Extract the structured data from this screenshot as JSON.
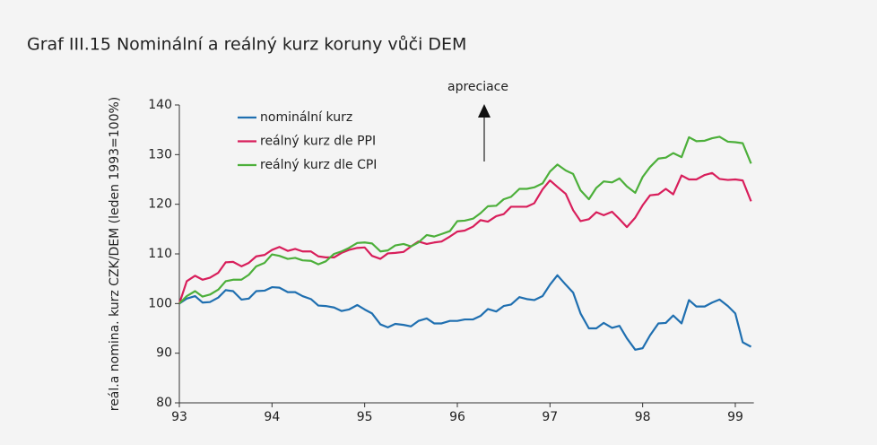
{
  "chart_data": {
    "type": "line",
    "title": "Graf III.15 Nominální a reálný kurz koruny vůči DEM",
    "y_label": "reál.a nomina. kurz CZK/DEM (leden 1993=100%)",
    "annotation": "apreciace",
    "x": [
      93,
      93.08,
      93.17,
      93.25,
      93.33,
      93.42,
      93.5,
      93.58,
      93.67,
      93.75,
      93.83,
      93.92,
      94,
      94.08,
      94.17,
      94.25,
      94.33,
      94.42,
      94.5,
      94.58,
      94.67,
      94.75,
      94.83,
      94.92,
      95,
      95.08,
      95.17,
      95.25,
      95.33,
      95.42,
      95.5,
      95.58,
      95.67,
      95.75,
      95.83,
      95.92,
      96,
      96.08,
      96.17,
      96.25,
      96.33,
      96.42,
      96.5,
      96.58,
      96.67,
      96.75,
      96.83,
      96.92,
      97,
      97.08,
      97.17,
      97.25,
      97.33,
      97.42,
      97.5,
      97.58,
      97.67,
      97.75,
      97.83,
      97.92,
      98,
      98.08,
      98.17,
      98.25,
      98.33,
      98.42,
      98.5,
      98.58,
      98.67,
      98.75,
      98.83,
      98.92,
      99,
      99.08,
      99.17
    ],
    "series": [
      {
        "name": "nominální kurz",
        "color": "#1f6fb0",
        "values": [
          100,
          101,
          101.5,
          100.2,
          100.3,
          101.2,
          102.7,
          102.5,
          100.8,
          101,
          102.5,
          102.6,
          103.3,
          103.2,
          102.3,
          102.3,
          101.5,
          100.9,
          99.6,
          99.5,
          99.2,
          98.5,
          98.8,
          99.7,
          98.8,
          98,
          95.8,
          95.2,
          95.9,
          95.7,
          95.4,
          96.5,
          97,
          96,
          96,
          96.5,
          96.5,
          96.8,
          96.8,
          97.5,
          98.9,
          98.4,
          99.5,
          99.8,
          101.3,
          100.9,
          100.7,
          101.5,
          103.8,
          105.7,
          103.8,
          102.2,
          98,
          95,
          95,
          96.1,
          95.1,
          95.5,
          93,
          90.7,
          91,
          93.6,
          96,
          96.1,
          97.6,
          96,
          100.7,
          99.4,
          99.4,
          100.2,
          100.8,
          99.5,
          98,
          92.2,
          91.3
        ]
      },
      {
        "name": "reálný kurz dle PPI",
        "color": "#d81e5b",
        "values": [
          100,
          104.5,
          105.6,
          104.8,
          105.2,
          106.2,
          108.3,
          108.4,
          107.5,
          108.2,
          109.5,
          109.8,
          110.8,
          111.4,
          110.6,
          111,
          110.5,
          110.5,
          109.5,
          109.3,
          109.3,
          110.2,
          110.8,
          111.2,
          111.3,
          109.6,
          109,
          110.1,
          110.2,
          110.4,
          111.5,
          112.5,
          112,
          112.3,
          112.5,
          113.5,
          114.5,
          114.7,
          115.5,
          116.8,
          116.5,
          117.6,
          118,
          119.5,
          119.5,
          119.5,
          120.2,
          123,
          124.8,
          123.5,
          122.1,
          118.8,
          116.6,
          117,
          118.4,
          117.8,
          118.5,
          117,
          115.4,
          117.3,
          119.8,
          121.8,
          122,
          123.1,
          122,
          125.8,
          125,
          125,
          125.9,
          126.3,
          125.1,
          124.9,
          125,
          124.8,
          120.6
        ]
      },
      {
        "name": "reálný kurz dle CPI",
        "color": "#4caf3a",
        "values": [
          100,
          101.5,
          102.5,
          101.4,
          101.8,
          102.8,
          104.5,
          104.8,
          104.8,
          105.8,
          107.5,
          108.2,
          109.9,
          109.6,
          109,
          109.2,
          108.7,
          108.6,
          107.9,
          108.5,
          110,
          110.5,
          111.2,
          112.2,
          112.3,
          112.1,
          110.5,
          110.7,
          111.7,
          112,
          111.5,
          112.3,
          113.8,
          113.5,
          114,
          114.6,
          116.6,
          116.7,
          117.1,
          118.2,
          119.6,
          119.7,
          121,
          121.5,
          123.1,
          123.1,
          123.4,
          124.2,
          126.6,
          128,
          126.8,
          126.1,
          122.8,
          121,
          123.3,
          124.6,
          124.4,
          125.2,
          123.6,
          122.3,
          125.5,
          127.5,
          129.2,
          129.4,
          130.3,
          129.5,
          133.5,
          132.7,
          132.8,
          133.3,
          133.6,
          132.6,
          132.5,
          132.3,
          128.2
        ]
      }
    ],
    "xlim": [
      93,
      99.2
    ],
    "xticks": [
      93,
      94,
      95,
      96,
      97,
      98,
      99
    ],
    "ylim": [
      80,
      140
    ],
    "yticks": [
      80,
      90,
      100,
      110,
      120,
      130,
      140
    ],
    "legend": "upper left"
  }
}
